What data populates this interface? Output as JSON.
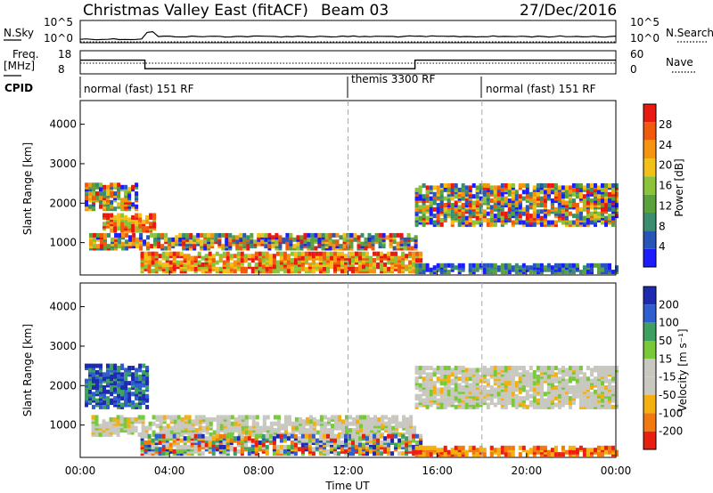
{
  "header": {
    "station": "Christmas Valley East (fitACF)",
    "beam": "Beam 03",
    "date": "27/Dec/2016"
  },
  "top_panels": {
    "nsky_label": "N.Sky",
    "nsky_ticks": [
      "10^5",
      "10^0"
    ],
    "nsearch_label": "N.Search",
    "nsearch_ticks": [
      "10^5",
      "10^0"
    ],
    "freq_label": "Freq.",
    "freq_unit": "[MHz]",
    "freq_ticks": [
      "18",
      "8"
    ],
    "nave_label": "Nave",
    "nave_ticks": [
      "60",
      "0"
    ],
    "cpid_label": "CPID",
    "cpid_segments": [
      {
        "label": "normal (fast) 151 RF",
        "start_h": 0,
        "end_h": 12
      },
      {
        "label": "themis 3300 RF",
        "start_h": 12,
        "end_h": 18
      },
      {
        "label": "normal (fast) 151 RF",
        "start_h": 18,
        "end_h": 24
      }
    ]
  },
  "x_axis": {
    "label": "Time UT",
    "ticks": [
      "00:00",
      "04:00",
      "08:00",
      "12:00",
      "16:00",
      "20:00",
      "00:00"
    ]
  },
  "power_panel": {
    "ylabel": "Slant Range [km]",
    "yticks": [
      "1000",
      "2000",
      "3000",
      "4000"
    ],
    "colorbar_label": "Power [dB]",
    "colorbar_ticks": [
      "4",
      "8",
      "12",
      "16",
      "20",
      "24",
      "28"
    ],
    "colorbar_colors": [
      "#1c1cff",
      "#2856b8",
      "#3a8e6e",
      "#5aa33c",
      "#8bc43a",
      "#f3c018",
      "#f59410",
      "#ef5a0c",
      "#e81a10"
    ]
  },
  "velocity_panel": {
    "ylabel": "Slant Range [km]",
    "yticks": [
      "1000",
      "2000",
      "3000",
      "4000"
    ],
    "colorbar_label": "Velocity [m s⁻¹]",
    "colorbar_ticks": [
      "200",
      "100",
      "50",
      "15",
      "-15",
      "-50",
      "-100",
      "-200"
    ],
    "colorbar_colors": [
      "#1e2ab0",
      "#2e5ed0",
      "#3ea060",
      "#78c83a",
      "#c8c8c0",
      "#c8c8c0",
      "#f3b010",
      "#f07a10",
      "#e82010"
    ]
  },
  "chart_data": {
    "type": "heatmap",
    "title": "Christmas Valley East (fitACF) Beam 03 27/Dec/2016",
    "xlabel": "Time UT",
    "ylabel": "Slant Range [km]",
    "xlim_hours": [
      0,
      24
    ],
    "ylim_km": [
      180,
      4600
    ],
    "vertical_markers_h": [
      12,
      18
    ],
    "freq_mhz": [
      {
        "start_h": 0,
        "end_h": 2.9,
        "value": 14
      },
      {
        "start_h": 2.9,
        "end_h": 15,
        "value": 10
      },
      {
        "start_h": 15,
        "end_h": 24,
        "value": 14
      }
    ],
    "power_regions": [
      {
        "t0": 0.2,
        "t1": 2.6,
        "r0": 1800,
        "r1": 2450,
        "level": "mixed"
      },
      {
        "t0": 1.0,
        "t1": 3.3,
        "r0": 1250,
        "r1": 1650,
        "level": "high"
      },
      {
        "t0": 0.4,
        "t1": 15.0,
        "r0": 800,
        "r1": 1150,
        "level": "mixed"
      },
      {
        "t0": 2.7,
        "t1": 15.3,
        "r0": 220,
        "r1": 700,
        "level": "high"
      },
      {
        "t0": 15.0,
        "t1": 24.0,
        "r0": 1400,
        "r1": 2400,
        "level": "mixed"
      },
      {
        "t0": 15.0,
        "t1": 24.0,
        "r0": 200,
        "r1": 380,
        "level": "low"
      }
    ],
    "velocity_regions": [
      {
        "t0": 0.2,
        "t1": 3.0,
        "r0": 1400,
        "r1": 2450,
        "velocity": "positive"
      },
      {
        "t0": 0.5,
        "t1": 15.0,
        "r0": 700,
        "r1": 1150,
        "velocity": "near-zero"
      },
      {
        "t0": 2.7,
        "t1": 15.3,
        "r0": 220,
        "r1": 700,
        "velocity": "mixed"
      },
      {
        "t0": 15.0,
        "t1": 24.0,
        "r0": 1400,
        "r1": 2400,
        "velocity": "near-zero"
      },
      {
        "t0": 15.0,
        "t1": 24.0,
        "r0": 200,
        "r1": 380,
        "velocity": "negative"
      }
    ]
  }
}
